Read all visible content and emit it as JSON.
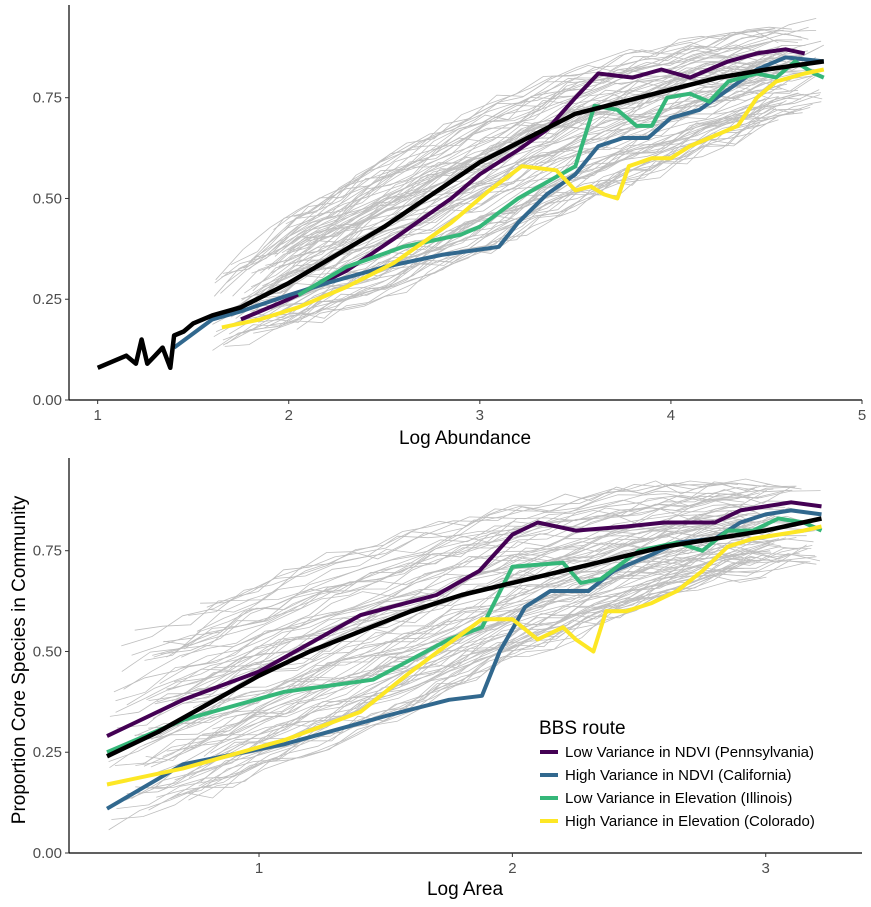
{
  "figure": {
    "shared_ylabel": "Proportion Core Species in Community"
  },
  "colors": {
    "background_lines": "#bebebe",
    "mean_line": "#000000",
    "axis": "#000000",
    "tick_text": "#4d4d4d"
  },
  "legend": {
    "title": "BBS route",
    "items": [
      {
        "label": "Low Variance in NDVI (Pennsylvania)",
        "color": "#440154"
      },
      {
        "label": "High Variance in NDVI (California)",
        "color": "#31688e"
      },
      {
        "label": "Low Variance in Elevation (Illinois)",
        "color": "#35b779"
      },
      {
        "label": "High Variance in Elevation (Colorado)",
        "color": "#fde725"
      }
    ]
  },
  "chart_data": [
    {
      "type": "line",
      "panel": "top",
      "xlabel": "Log Abundance",
      "ylabel": "",
      "xlim": [
        0.85,
        5.0
      ],
      "ylim": [
        0.0,
        0.98
      ],
      "xticks": [
        1,
        2,
        3,
        4,
        5
      ],
      "yticks": [
        0.0,
        0.25,
        0.5,
        0.75
      ],
      "ytick_labels": [
        "0.00",
        "0.25",
        "0.50",
        "0.75"
      ],
      "grid": false,
      "background_band": {
        "description": "many gray route curves",
        "x": [
          1.6,
          2.0,
          2.5,
          3.0,
          3.5,
          4.0,
          4.5,
          4.8
        ],
        "lower": [
          0.12,
          0.18,
          0.26,
          0.36,
          0.48,
          0.58,
          0.68,
          0.72
        ],
        "upper": [
          0.3,
          0.45,
          0.6,
          0.72,
          0.82,
          0.88,
          0.92,
          0.93
        ]
      },
      "series": [
        {
          "name": "Low Variance in NDVI (Pennsylvania)",
          "x": [
            1.75,
            2.0,
            2.3,
            2.55,
            2.7,
            2.85,
            3.0,
            3.2,
            3.35,
            3.5,
            3.62,
            3.8,
            3.95,
            4.1,
            4.3,
            4.45,
            4.6,
            4.7
          ],
          "y": [
            0.2,
            0.25,
            0.32,
            0.4,
            0.45,
            0.5,
            0.56,
            0.62,
            0.67,
            0.75,
            0.81,
            0.8,
            0.82,
            0.8,
            0.84,
            0.86,
            0.87,
            0.86
          ]
        },
        {
          "name": "High Variance in NDVI (California)",
          "x": [
            1.4,
            1.6,
            1.75,
            2.0,
            2.2,
            2.5,
            2.8,
            3.1,
            3.2,
            3.35,
            3.5,
            3.62,
            3.75,
            3.88,
            4.0,
            4.15,
            4.3,
            4.45,
            4.6,
            4.8
          ],
          "y": [
            0.13,
            0.2,
            0.22,
            0.26,
            0.29,
            0.33,
            0.36,
            0.38,
            0.44,
            0.51,
            0.56,
            0.63,
            0.65,
            0.65,
            0.7,
            0.72,
            0.77,
            0.82,
            0.85,
            0.84
          ]
        },
        {
          "name": "Low Variance in Elevation (Illinois)",
          "x": [
            2.05,
            2.3,
            2.6,
            2.9,
            3.0,
            3.2,
            3.35,
            3.5,
            3.6,
            3.72,
            3.82,
            3.9,
            3.98,
            4.1,
            4.2,
            4.3,
            4.45,
            4.55,
            4.65,
            4.75,
            4.8
          ],
          "y": [
            0.26,
            0.33,
            0.38,
            0.41,
            0.43,
            0.5,
            0.54,
            0.58,
            0.73,
            0.72,
            0.68,
            0.68,
            0.75,
            0.76,
            0.74,
            0.79,
            0.81,
            0.8,
            0.84,
            0.81,
            0.8
          ]
        },
        {
          "name": "High Variance in Elevation (Colorado)",
          "x": [
            1.65,
            1.85,
            2.05,
            2.3,
            2.55,
            2.85,
            3.05,
            3.22,
            3.4,
            3.5,
            3.58,
            3.65,
            3.72,
            3.78,
            3.9,
            4.0,
            4.1,
            4.25,
            4.35,
            4.45,
            4.55,
            4.7,
            4.8
          ],
          "y": [
            0.18,
            0.2,
            0.23,
            0.28,
            0.34,
            0.44,
            0.52,
            0.58,
            0.57,
            0.52,
            0.53,
            0.51,
            0.5,
            0.58,
            0.6,
            0.6,
            0.63,
            0.66,
            0.68,
            0.75,
            0.79,
            0.81,
            0.82
          ]
        },
        {
          "name": "",
          "x": [
            1.0,
            1.15,
            1.2,
            1.23,
            1.26,
            1.3,
            1.34,
            1.38,
            1.4,
            1.45,
            1.5,
            1.6,
            1.75,
            2.0,
            2.25,
            2.5,
            2.75,
            3.0,
            3.25,
            3.5,
            3.75,
            4.0,
            4.25,
            4.5,
            4.8
          ],
          "y": [
            0.08,
            0.11,
            0.09,
            0.15,
            0.09,
            0.11,
            0.13,
            0.08,
            0.16,
            0.17,
            0.19,
            0.21,
            0.23,
            0.29,
            0.36,
            0.43,
            0.51,
            0.59,
            0.65,
            0.71,
            0.74,
            0.77,
            0.8,
            0.82,
            0.84
          ]
        }
      ]
    },
    {
      "type": "line",
      "panel": "bottom",
      "xlabel": "Log Area",
      "ylabel": "Proportion Core Species in Community",
      "xlim": [
        0.25,
        3.38
      ],
      "ylim": [
        0.0,
        0.98
      ],
      "xticks": [
        1,
        2,
        3
      ],
      "yticks": [
        0.0,
        0.25,
        0.5,
        0.75
      ],
      "ytick_labels": [
        "0.00",
        "0.25",
        "0.50",
        "0.75"
      ],
      "grid": false,
      "background_band": {
        "description": "many gray route curves",
        "x": [
          0.4,
          0.8,
          1.2,
          1.6,
          2.0,
          2.4,
          2.8,
          3.22
        ],
        "lower": [
          0.05,
          0.15,
          0.25,
          0.35,
          0.48,
          0.58,
          0.68,
          0.72
        ],
        "upper": [
          0.53,
          0.62,
          0.72,
          0.8,
          0.86,
          0.9,
          0.92,
          0.93
        ]
      },
      "series": [
        {
          "name": "Low Variance in NDVI (Pennsylvania)",
          "x": [
            0.4,
            0.7,
            1.0,
            1.4,
            1.7,
            1.87,
            2.0,
            2.1,
            2.25,
            2.45,
            2.6,
            2.8,
            2.9,
            3.0,
            3.1,
            3.22
          ],
          "y": [
            0.29,
            0.38,
            0.45,
            0.59,
            0.64,
            0.7,
            0.79,
            0.82,
            0.8,
            0.81,
            0.82,
            0.82,
            0.85,
            0.86,
            0.87,
            0.86
          ]
        },
        {
          "name": "High Variance in NDVI (California)",
          "x": [
            0.4,
            0.7,
            1.1,
            1.5,
            1.75,
            1.88,
            1.95,
            2.05,
            2.15,
            2.3,
            2.4,
            2.55,
            2.65,
            2.8,
            2.9,
            3.0,
            3.1,
            3.22
          ],
          "y": [
            0.11,
            0.22,
            0.27,
            0.34,
            0.38,
            0.39,
            0.5,
            0.61,
            0.65,
            0.65,
            0.7,
            0.74,
            0.77,
            0.78,
            0.82,
            0.84,
            0.85,
            0.84
          ]
        },
        {
          "name": "Low Variance in Elevation (Illinois)",
          "x": [
            0.4,
            0.7,
            1.1,
            1.45,
            1.75,
            1.88,
            2.0,
            2.2,
            2.27,
            2.35,
            2.5,
            2.65,
            2.75,
            2.85,
            2.95,
            3.05,
            3.15,
            3.22
          ],
          "y": [
            0.25,
            0.33,
            0.4,
            0.43,
            0.53,
            0.56,
            0.71,
            0.72,
            0.67,
            0.68,
            0.75,
            0.77,
            0.75,
            0.8,
            0.8,
            0.83,
            0.82,
            0.8
          ]
        },
        {
          "name": "High Variance in Elevation (Colorado)",
          "x": [
            0.4,
            0.7,
            1.1,
            1.4,
            1.6,
            1.75,
            1.88,
            2.0,
            2.1,
            2.2,
            2.25,
            2.32,
            2.37,
            2.45,
            2.55,
            2.65,
            2.75,
            2.85,
            2.95,
            3.05,
            3.15,
            3.22
          ],
          "y": [
            0.17,
            0.21,
            0.28,
            0.35,
            0.45,
            0.52,
            0.58,
            0.58,
            0.53,
            0.56,
            0.53,
            0.5,
            0.6,
            0.6,
            0.62,
            0.65,
            0.7,
            0.76,
            0.78,
            0.79,
            0.8,
            0.81
          ]
        },
        {
          "name": "",
          "x": [
            0.4,
            0.6,
            0.8,
            1.0,
            1.2,
            1.4,
            1.6,
            1.8,
            2.0,
            2.2,
            2.4,
            2.6,
            2.8,
            3.0,
            3.22
          ],
          "y": [
            0.24,
            0.3,
            0.37,
            0.44,
            0.5,
            0.55,
            0.6,
            0.64,
            0.67,
            0.7,
            0.73,
            0.76,
            0.78,
            0.8,
            0.83
          ]
        }
      ]
    }
  ]
}
